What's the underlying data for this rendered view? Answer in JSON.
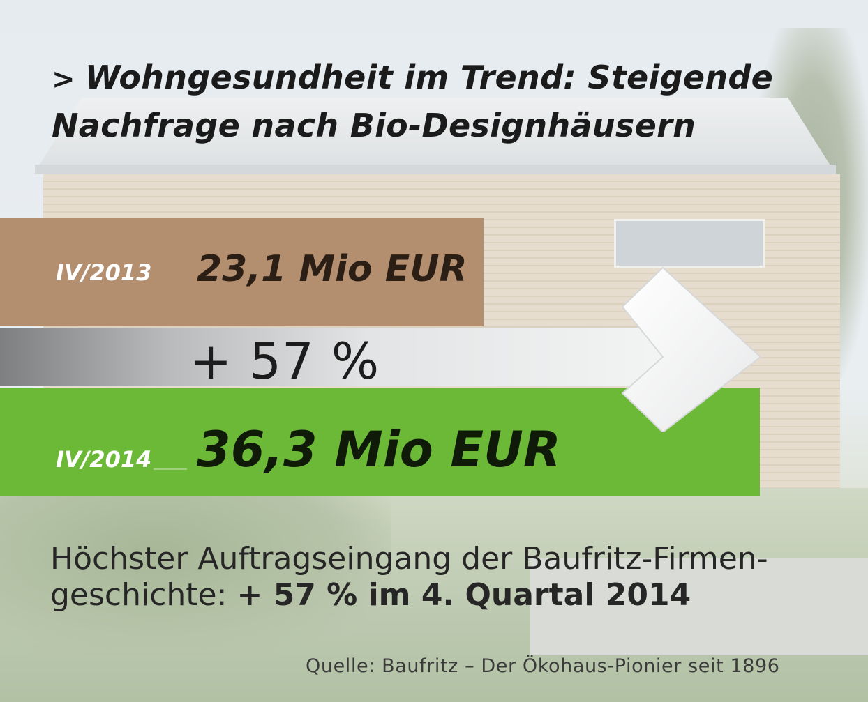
{
  "title": {
    "chevron": ">",
    "line1": "Wohngesundheit im Trend: Steigende",
    "line2": "Nachfrage nach Bio-Designhäusern"
  },
  "chart_data": {
    "type": "bar",
    "categories": [
      "IV/2013",
      "IV/2014"
    ],
    "values": [
      23.1,
      36.3
    ],
    "value_labels": [
      "23,1 Mio EUR",
      "36,3 Mio EUR"
    ],
    "unit": "Mio EUR",
    "change_label": "+ 57 %",
    "change_percent": 57,
    "colors": {
      "bar_2013": "#b38f70",
      "bar_2014": "#6cb937",
      "arrow": "#ffffff"
    }
  },
  "description": {
    "line1": "Höchster Auftragseingang der Baufritz-Firmen-",
    "line2_prefix": "geschichte: ",
    "line2_bold": "+ 57 % im 4. Quartal 2014"
  },
  "source": "Quelle: Baufritz – Der Ökohaus-Pionier seit 1896"
}
